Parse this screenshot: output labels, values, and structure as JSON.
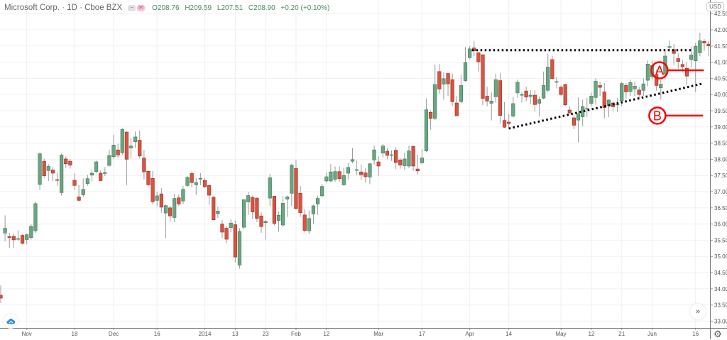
{
  "header": {
    "symbol_title": "Microsoft Corp. · 1D · Cboe BZX",
    "badges": [
      {
        "icon": "minus-icon",
        "glyph": "−"
      },
      {
        "icon": "flag-icon",
        "glyph": "✉"
      }
    ],
    "open": "O208.76",
    "high": "H209.59",
    "low": "L207.51",
    "close": "C208.90",
    "change": "+0.20 (+0.10%)",
    "currency": "USD"
  },
  "controls": {
    "scroll_to_latest": "»",
    "settings": "⚙"
  },
  "colors": {
    "up": "#6ba583",
    "up_border": "#3f7a58",
    "down": "#d75442",
    "down_border": "#9a2f22",
    "wick": "#9a9a9a",
    "annotation": "#ff0000",
    "trendline": "#000000",
    "grid": "#f0f0f0"
  },
  "chart_data": {
    "type": "candlestick",
    "ylim": [
      32.79,
      42.92
    ],
    "grid": true,
    "y_ticks": [
      "42.50",
      "42.00",
      "41.50",
      "41.00",
      "40.50",
      "40.00",
      "39.50",
      "39.00",
      "38.50",
      "38.00",
      "37.50",
      "37.00",
      "36.50",
      "36.00",
      "35.50",
      "35.00",
      "34.50",
      "34.00",
      "33.50",
      "33.00"
    ],
    "x_ticks": [
      {
        "label": "Nov",
        "index": 6
      },
      {
        "label": "18",
        "index": 17
      },
      {
        "label": "Dec",
        "index": 26
      },
      {
        "label": "16",
        "index": 36
      },
      {
        "label": "2014",
        "index": 47
      },
      {
        "label": "13",
        "index": 54
      },
      {
        "label": "23",
        "index": 61
      },
      {
        "label": "Feb",
        "index": 68
      },
      {
        "label": "12",
        "index": 75
      },
      {
        "label": "Mar",
        "index": 87
      },
      {
        "label": "17",
        "index": 97
      },
      {
        "label": "Apr",
        "index": 108
      },
      {
        "label": "14",
        "index": 117
      },
      {
        "label": "May",
        "index": 129
      },
      {
        "label": "12",
        "index": 136
      },
      {
        "label": "21",
        "index": 143
      },
      {
        "label": "Jun",
        "index": 150
      },
      {
        "label": "16",
        "index": 160
      }
    ],
    "ohlc_fields": [
      "open",
      "high",
      "low",
      "close"
    ],
    "candles": [
      [
        33.8,
        34.1,
        33.56,
        33.71
      ],
      [
        35.72,
        36.27,
        35.47,
        35.87
      ],
      [
        35.61,
        35.73,
        35.26,
        35.58
      ],
      [
        35.62,
        35.71,
        35.26,
        35.51
      ],
      [
        35.54,
        35.8,
        35.47,
        35.55
      ],
      [
        35.65,
        35.69,
        35.37,
        35.4
      ],
      [
        35.52,
        35.71,
        35.37,
        35.67
      ],
      [
        35.58,
        35.99,
        35.52,
        35.93
      ],
      [
        35.79,
        36.69,
        35.72,
        36.63
      ],
      [
        37.22,
        38.21,
        37.05,
        38.17
      ],
      [
        37.94,
        38.02,
        37.42,
        37.49
      ],
      [
        37.65,
        37.85,
        37.33,
        37.78
      ],
      [
        37.67,
        37.76,
        37.33,
        37.57
      ],
      [
        37.37,
        37.59,
        37.18,
        37.36
      ],
      [
        36.97,
        38.17,
        36.88,
        38.13
      ],
      [
        38.01,
        38.09,
        37.73,
        37.86
      ],
      [
        37.94,
        38.01,
        37.71,
        37.82
      ],
      [
        37.35,
        37.57,
        37.05,
        37.19
      ],
      [
        36.84,
        37.21,
        36.7,
        36.73
      ],
      [
        36.9,
        37.41,
        36.83,
        37.07
      ],
      [
        37.25,
        37.52,
        37.18,
        37.4
      ],
      [
        37.51,
        37.68,
        37.33,
        37.57
      ],
      [
        37.62,
        37.96,
        37.57,
        37.92
      ],
      [
        37.57,
        37.65,
        37.33,
        37.34
      ],
      [
        37.56,
        37.76,
        37.48,
        37.59
      ],
      [
        37.81,
        38.29,
        37.77,
        38.12
      ],
      [
        38.08,
        38.76,
        38.01,
        38.44
      ],
      [
        38.29,
        38.48,
        38.05,
        38.13
      ],
      [
        38.2,
        38.96,
        38.13,
        38.92
      ],
      [
        38.84,
        38.86,
        37.2,
        38.0
      ],
      [
        38.35,
        38.66,
        38.02,
        38.41
      ],
      [
        38.54,
        38.86,
        38.36,
        38.69
      ],
      [
        38.59,
        38.88,
        38.02,
        38.1
      ],
      [
        38.04,
        38.29,
        37.38,
        37.61
      ],
      [
        37.63,
        37.65,
        37.16,
        37.21
      ],
      [
        37.41,
        37.64,
        36.61,
        36.69
      ],
      [
        36.73,
        37.0,
        36.55,
        36.87
      ],
      [
        36.93,
        37.11,
        36.35,
        36.52
      ],
      [
        36.34,
        36.6,
        35.55,
        36.57
      ],
      [
        36.5,
        36.56,
        36.06,
        36.25
      ],
      [
        36.2,
        36.93,
        36.06,
        36.79
      ],
      [
        36.81,
        36.91,
        36.55,
        36.62
      ],
      [
        36.71,
        37.17,
        36.61,
        37.07
      ],
      [
        37.19,
        37.48,
        37.14,
        37.44
      ],
      [
        37.56,
        37.63,
        37.14,
        37.28
      ],
      [
        37.21,
        37.42,
        36.9,
        37.28
      ],
      [
        37.41,
        37.57,
        37.2,
        37.41
      ],
      [
        37.35,
        37.42,
        37.12,
        37.15
      ],
      [
        37.19,
        37.23,
        36.59,
        36.89
      ],
      [
        36.83,
        36.85,
        36.11,
        36.13
      ],
      [
        36.32,
        36.53,
        36.19,
        36.4
      ],
      [
        36.0,
        36.12,
        35.56,
        35.75
      ],
      [
        35.87,
        35.93,
        35.41,
        35.53
      ],
      [
        35.89,
        36.14,
        35.75,
        36.03
      ],
      [
        35.98,
        36.11,
        34.82,
        34.98
      ],
      [
        34.73,
        35.87,
        34.62,
        35.77
      ],
      [
        35.9,
        36.77,
        35.85,
        36.75
      ],
      [
        36.68,
        36.99,
        36.28,
        36.88
      ],
      [
        36.82,
        36.88,
        36.15,
        36.37
      ],
      [
        36.8,
        36.82,
        36.06,
        36.17
      ],
      [
        36.25,
        36.36,
        35.73,
        35.92
      ],
      [
        36.04,
        36.12,
        35.52,
        36.08
      ],
      [
        36.8,
        37.54,
        36.55,
        37.43
      ],
      [
        36.86,
        36.86,
        35.96,
        36.02
      ],
      [
        36.11,
        36.39,
        35.76,
        36.27
      ],
      [
        35.97,
        36.86,
        35.91,
        36.64
      ],
      [
        36.77,
        36.88,
        36.22,
        36.84
      ],
      [
        36.95,
        37.86,
        36.55,
        37.82
      ],
      [
        37.72,
        37.97,
        36.44,
        36.48
      ],
      [
        36.95,
        37.18,
        36.22,
        36.35
      ],
      [
        36.28,
        36.46,
        35.75,
        35.8
      ],
      [
        35.79,
        36.42,
        35.69,
        36.17
      ],
      [
        36.31,
        36.6,
        36.0,
        36.56
      ],
      [
        36.62,
        36.88,
        36.28,
        36.79
      ],
      [
        36.87,
        37.24,
        36.83,
        37.16
      ],
      [
        37.33,
        37.59,
        37.27,
        37.46
      ],
      [
        37.33,
        37.85,
        37.29,
        37.61
      ],
      [
        37.38,
        37.78,
        37.31,
        37.62
      ],
      [
        37.62,
        37.78,
        37.31,
        37.4
      ],
      [
        37.21,
        37.74,
        37.18,
        37.5
      ],
      [
        37.57,
        37.88,
        37.38,
        37.75
      ],
      [
        37.94,
        38.35,
        37.88,
        37.99
      ],
      [
        37.68,
        37.96,
        37.51,
        37.68
      ],
      [
        37.61,
        37.84,
        37.36,
        37.52
      ],
      [
        37.58,
        37.73,
        37.28,
        37.46
      ],
      [
        37.45,
        37.88,
        37.23,
        37.86
      ],
      [
        37.98,
        38.42,
        37.84,
        38.29
      ],
      [
        37.92,
        38.09,
        37.49,
        37.79
      ],
      [
        38.19,
        38.47,
        38.06,
        38.41
      ],
      [
        38.25,
        38.36,
        38.0,
        38.12
      ],
      [
        38.14,
        38.28,
        37.95,
        38.14
      ],
      [
        38.28,
        38.38,
        37.69,
        37.9
      ],
      [
        37.98,
        38.03,
        37.71,
        37.82
      ],
      [
        37.8,
        38.2,
        37.68,
        38.01
      ],
      [
        37.79,
        38.42,
        37.73,
        38.26
      ],
      [
        38.4,
        38.42,
        37.64,
        37.79
      ],
      [
        37.7,
        38.14,
        37.53,
        37.64
      ],
      [
        37.89,
        38.31,
        37.84,
        38.04
      ],
      [
        38.26,
        39.88,
        38.22,
        39.53
      ],
      [
        39.45,
        39.51,
        38.91,
        39.26
      ],
      [
        39.26,
        40.93,
        39.21,
        40.31
      ],
      [
        40.71,
        40.94,
        40.02,
        40.17
      ],
      [
        40.32,
        40.68,
        39.84,
        40.49
      ],
      [
        40.65,
        40.68,
        39.95,
        40.33
      ],
      [
        40.46,
        40.65,
        39.64,
        39.78
      ],
      [
        39.74,
        39.95,
        39.34,
        39.34
      ],
      [
        39.78,
        40.61,
        39.73,
        40.28
      ],
      [
        40.43,
        41.47,
        40.39,
        40.99
      ],
      [
        41.14,
        41.5,
        41.09,
        41.41
      ],
      [
        41.44,
        41.65,
        41.18,
        41.35
      ],
      [
        41.29,
        41.32,
        40.71,
        41.01
      ],
      [
        41.23,
        41.24,
        39.67,
        39.88
      ],
      [
        39.95,
        40.24,
        39.64,
        39.8
      ],
      [
        39.73,
        40.06,
        39.2,
        39.8
      ],
      [
        39.93,
        40.65,
        39.75,
        40.46
      ],
      [
        40.43,
        40.67,
        39.1,
        39.35
      ],
      [
        39.2,
        39.77,
        38.97,
        38.99
      ],
      [
        39.15,
        39.4,
        38.95,
        39.1
      ],
      [
        39.33,
        39.93,
        39.29,
        39.72
      ],
      [
        40.05,
        40.46,
        39.9,
        40.38
      ],
      [
        40.0,
        40.07,
        39.75,
        40.0
      ],
      [
        40.11,
        40.24,
        39.79,
        39.92
      ],
      [
        39.94,
        40.13,
        39.7,
        39.98
      ],
      [
        39.98,
        40.13,
        39.47,
        39.69
      ],
      [
        39.73,
        39.94,
        39.32,
        39.85
      ],
      [
        39.89,
        40.71,
        39.85,
        40.28
      ],
      [
        40.13,
        41.26,
        40.08,
        40.85
      ],
      [
        41.08,
        41.2,
        40.47,
        40.49
      ],
      [
        40.4,
        40.55,
        40.19,
        40.4
      ],
      [
        40.23,
        40.28,
        39.96,
        40.0
      ],
      [
        40.31,
        40.33,
        39.64,
        39.68
      ],
      [
        39.52,
        39.63,
        39.41,
        39.43
      ],
      [
        39.28,
        39.36,
        38.93,
        39.05
      ],
      [
        39.21,
        39.91,
        38.52,
        39.41
      ],
      [
        39.31,
        39.84,
        39.03,
        39.63
      ],
      [
        39.56,
        39.89,
        39.31,
        39.57
      ],
      [
        39.72,
        40.06,
        39.63,
        39.95
      ],
      [
        39.91,
        40.5,
        39.68,
        40.41
      ],
      [
        40.28,
        40.39,
        39.96,
        40.22
      ],
      [
        40.08,
        40.35,
        39.27,
        39.59
      ],
      [
        39.65,
        39.85,
        39.3,
        39.83
      ],
      [
        39.74,
        39.79,
        39.47,
        39.62
      ],
      [
        39.7,
        39.9,
        39.47,
        39.7
      ],
      [
        39.81,
        40.39,
        39.64,
        40.34
      ],
      [
        40.28,
        40.35,
        39.85,
        40.08
      ],
      [
        40.09,
        40.46,
        39.96,
        40.37
      ],
      [
        40.17,
        40.39,
        39.96,
        40.26
      ],
      [
        40.14,
        40.24,
        39.85,
        40.0
      ],
      [
        40.13,
        40.5,
        39.96,
        40.33
      ],
      [
        40.44,
        41.05,
        40.25,
        40.94
      ],
      [
        40.55,
        41.05,
        40.46,
        40.9
      ],
      [
        40.62,
        40.77,
        40.12,
        40.28
      ],
      [
        40.21,
        40.44,
        39.86,
        40.32
      ],
      [
        40.63,
        41.34,
        40.46,
        41.19
      ],
      [
        41.48,
        41.67,
        41.35,
        41.48
      ],
      [
        41.39,
        41.56,
        40.92,
        41.27
      ],
      [
        41.11,
        41.27,
        40.8,
        41.02
      ],
      [
        40.93,
        41.06,
        40.69,
        40.86
      ],
      [
        40.81,
        41.01,
        40.3,
        40.57
      ],
      [
        41.08,
        41.47,
        40.84,
        41.22
      ],
      [
        41.04,
        41.59,
        40.07,
        41.49
      ],
      [
        41.29,
        41.91,
        41.18,
        41.66
      ],
      [
        41.64,
        41.71,
        41.35,
        41.59
      ],
      [
        41.56,
        41.65,
        41.18,
        41.5
      ]
    ],
    "annotations": {
      "resistance_line": {
        "style": "dotted",
        "from": {
          "index": 108.5,
          "price": 41.37
        },
        "to": {
          "index": 159.5,
          "price": 41.37
        }
      },
      "support_trendline": {
        "style": "dotted",
        "from": {
          "index": 117,
          "price": 38.95
        },
        "to": {
          "index": 161.7,
          "price": 40.34
        }
      },
      "markers": [
        {
          "label": "A",
          "index": 151.7,
          "price": 40.75,
          "line_to_index": 161.9
        },
        {
          "label": "B",
          "index": 151.2,
          "price": 39.35,
          "line_to_index": 161.7
        }
      ]
    }
  }
}
